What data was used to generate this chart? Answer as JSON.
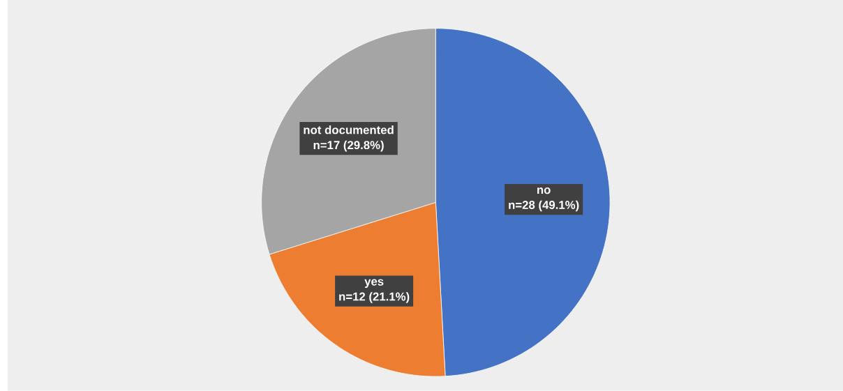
{
  "chart_data": {
    "type": "pie",
    "categories": [
      "no",
      "yes",
      "not documented"
    ],
    "values": [
      28,
      12,
      17
    ],
    "value_labels": [
      "n=28 (49.1%)",
      "n=12 (21.1%)",
      "n=17 (29.8%)"
    ],
    "colors": [
      "#4472c4",
      "#ed7d31",
      "#a5a5a5"
    ]
  }
}
